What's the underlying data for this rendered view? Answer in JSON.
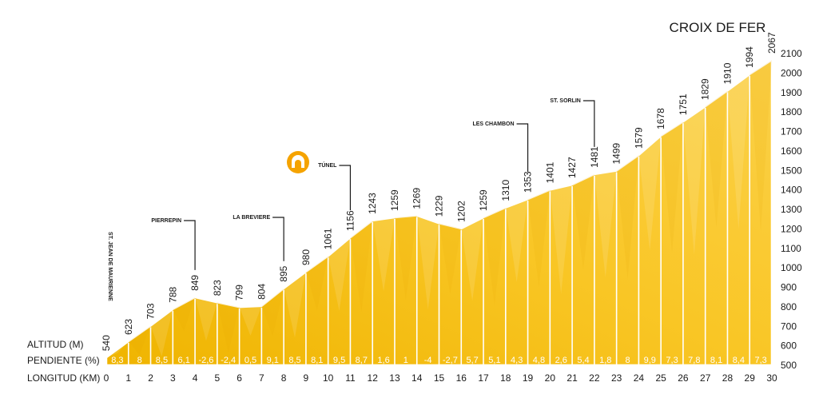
{
  "chart_data": {
    "type": "area",
    "title": "CROIX DE FER",
    "row_labels": {
      "altitude": "ALTITUD (M)",
      "gradient": "PENDIENTE (%)",
      "distance": "LONGITUD (KM)"
    },
    "x": [
      0,
      1,
      2,
      3,
      4,
      5,
      6,
      7,
      8,
      9,
      10,
      11,
      12,
      13,
      14,
      15,
      16,
      17,
      18,
      19,
      20,
      21,
      22,
      23,
      24,
      25,
      26,
      27,
      28,
      29,
      30
    ],
    "altitudes": [
      540,
      623,
      703,
      788,
      849,
      823,
      799,
      804,
      895,
      980,
      1061,
      1156,
      1243,
      1259,
      1269,
      1229,
      1202,
      1259,
      1310,
      1353,
      1401,
      1427,
      1481,
      1499,
      1579,
      1678,
      1751,
      1829,
      1910,
      1994,
      2067
    ],
    "altitude_labels": [
      "540",
      "623",
      "703",
      "788",
      "849",
      "823",
      "799",
      "804",
      "895",
      "980",
      "1061",
      "1156",
      "1243",
      "1259",
      "1269",
      "1229",
      "1202",
      "1259",
      "1310",
      "1353",
      "1401",
      "1427",
      "1481",
      "1499",
      "1579",
      "1678",
      "1751",
      "1829",
      "1910",
      "1994",
      "2067"
    ],
    "gradients": [
      "8,3",
      "8",
      "8,5",
      "6,1",
      "-2,6",
      "-2,4",
      "0,5",
      "9,1",
      "8,5",
      "8,1",
      "9,5",
      "8,7",
      "1,6",
      "1",
      "-4",
      "-2,7",
      "5,7",
      "5,1",
      "4,3",
      "4,8",
      "2,6",
      "5,4",
      "1,8",
      "8",
      "9,9",
      "7,3",
      "7,8",
      "8,1",
      "8,4",
      "7,3"
    ],
    "x_ticks": [
      "0",
      "1",
      "2",
      "3",
      "4",
      "5",
      "6",
      "7",
      "8",
      "9",
      "10",
      "11",
      "12",
      "13",
      "14",
      "15",
      "16",
      "17",
      "18",
      "19",
      "20",
      "21",
      "22",
      "23",
      "24",
      "25",
      "26",
      "27",
      "28",
      "29",
      "30"
    ],
    "y_ticks": [
      "500",
      "600",
      "700",
      "800",
      "900",
      "1000",
      "1100",
      "1200",
      "1300",
      "1400",
      "1500",
      "1600",
      "1700",
      "1800",
      "1900",
      "2000",
      "2100"
    ],
    "ylim": [
      500,
      2100
    ],
    "xlim": [
      0,
      30
    ],
    "places": [
      {
        "km": 0,
        "label": "ST. JEAN DE MAURIENNE"
      },
      {
        "km": 4,
        "label": "PIERREPIN"
      },
      {
        "km": 8,
        "label": "LA BREVIERE"
      },
      {
        "km": 11,
        "label": "TÚNEL"
      },
      {
        "km": 19,
        "label": "LES CHAMBON"
      },
      {
        "km": 22,
        "label": "ST. SORLIN"
      }
    ],
    "colors": {
      "fill": "#f7c31e",
      "fill_dark": "#f0b400",
      "fill_light": "#fbd45a",
      "text": "#1a1a1a",
      "gradient_text": "#ffffff",
      "tunnel_icon": "#f5a300"
    },
    "icons": {
      "tunnel": "tunnel-icon"
    }
  }
}
